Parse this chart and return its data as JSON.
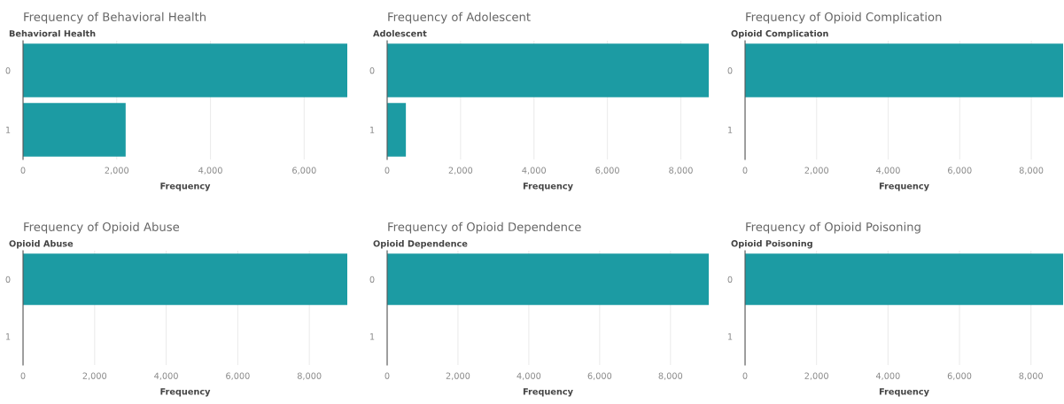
{
  "chart_data": [
    {
      "type": "bar",
      "orientation": "horizontal",
      "title": "Frequency of Behavioral Health",
      "ylabel": "Behavioral Health",
      "xlabel": "Frequency",
      "categories": [
        "0",
        "1"
      ],
      "values": [
        6920,
        2190
      ],
      "color": "#1c9ba3",
      "xlim": [
        0,
        6920
      ],
      "xticks": [
        0,
        {
          "value": 2000,
          "label": "2,000"
        },
        {
          "value": 4000,
          "label": "4,000"
        },
        {
          "value": 6000,
          "label": "6,000"
        }
      ],
      "grid": "x"
    },
    {
      "type": "bar",
      "orientation": "horizontal",
      "title": "Frequency of Adolescent",
      "ylabel": "Adolescent",
      "xlabel": "Frequency",
      "categories": [
        "0",
        "1"
      ],
      "values": [
        8760,
        510
      ],
      "color": "#1c9ba3",
      "xlim": [
        0,
        8760
      ],
      "xticks": [
        0,
        {
          "value": 2000,
          "label": "2,000"
        },
        {
          "value": 4000,
          "label": "4,000"
        },
        {
          "value": 6000,
          "label": "6,000"
        },
        {
          "value": 8000,
          "label": "8,000"
        }
      ],
      "grid": "x"
    },
    {
      "type": "bar",
      "orientation": "horizontal",
      "title": "Frequency of Opioid Complication",
      "ylabel": "Opioid Complication",
      "xlabel": "Frequency",
      "categories": [
        "0",
        "1"
      ],
      "values": [
        8890,
        null
      ],
      "color": "#1c9ba3",
      "xlim": [
        0,
        8890
      ],
      "xticks": [
        0,
        {
          "value": 2000,
          "label": "2,000"
        },
        {
          "value": 4000,
          "label": "4,000"
        },
        {
          "value": 6000,
          "label": "6,000"
        },
        {
          "value": 8000,
          "label": "8,000"
        }
      ],
      "grid": "x"
    },
    {
      "type": "bar",
      "orientation": "horizontal",
      "title": "Frequency of Opioid Abuse",
      "ylabel": "Opioid Abuse",
      "xlabel": "Frequency",
      "categories": [
        "0",
        "1"
      ],
      "values": [
        9060,
        null
      ],
      "color": "#1c9ba3",
      "xlim": [
        0,
        9060
      ],
      "xticks": [
        0,
        {
          "value": 2000,
          "label": "2,000"
        },
        {
          "value": 4000,
          "label": "4,000"
        },
        {
          "value": 6000,
          "label": "6,000"
        },
        {
          "value": 8000,
          "label": "8,000"
        }
      ],
      "grid": "x"
    },
    {
      "type": "bar",
      "orientation": "horizontal",
      "title": "Frequency of Opioid Dependence",
      "ylabel": "Opioid Dependence",
      "xlabel": "Frequency",
      "categories": [
        "0",
        "1"
      ],
      "values": [
        9080,
        null
      ],
      "color": "#1c9ba3",
      "xlim": [
        0,
        9080
      ],
      "xticks": [
        0,
        {
          "value": 2000,
          "label": "2,000"
        },
        {
          "value": 4000,
          "label": "4,000"
        },
        {
          "value": 6000,
          "label": "6,000"
        },
        {
          "value": 8000,
          "label": "8,000"
        }
      ],
      "grid": "x"
    },
    {
      "type": "bar",
      "orientation": "horizontal",
      "title": "Frequency of Opioid Poisoning",
      "ylabel": "Opioid Poisoning",
      "xlabel": "Frequency",
      "categories": [
        "0",
        "1"
      ],
      "values": [
        8900,
        null
      ],
      "color": "#1c9ba3",
      "xlim": [
        0,
        8900
      ],
      "xticks": [
        0,
        {
          "value": 2000,
          "label": "2,000"
        },
        {
          "value": 4000,
          "label": "4,000"
        },
        {
          "value": 6000,
          "label": "6,000"
        },
        {
          "value": 8000,
          "label": "8,000"
        }
      ],
      "grid": "x"
    }
  ]
}
